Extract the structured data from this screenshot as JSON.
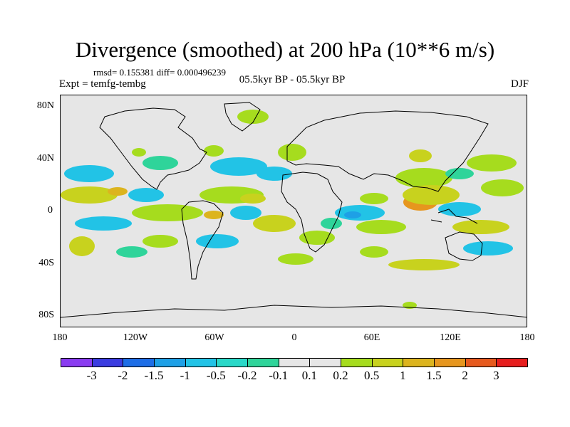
{
  "title": "Divergence (smoothed) at 200 hPa (10**6 m/s)",
  "stats": "rmsd= 0.155381 diff= 0.000496239",
  "experiment": "Expt = temfg-tembg",
  "comparison": "05.5kyr BP - 05.5kyr BP",
  "season": "DJF",
  "y_ticks": [
    "80N",
    "40N",
    "0",
    "40S",
    "80S"
  ],
  "x_ticks": [
    "180",
    "120W",
    "60W",
    "0",
    "60E",
    "120E",
    "180"
  ],
  "legend": {
    "labels": [
      "-3",
      "-2",
      "-1.5",
      "-1",
      "-0.5",
      "-0.2",
      "-0.1",
      "0.1",
      "0.2",
      "0.5",
      "1",
      "1.5",
      "2",
      "3"
    ],
    "colors": [
      "#8a3cf0",
      "#3b3ce0",
      "#1e6ee6",
      "#1ea0e6",
      "#22c3e6",
      "#29d8c8",
      "#2fd49a",
      "#e6e6e6",
      "#a6dc1e",
      "#c8d21e",
      "#dcb41e",
      "#e6961e",
      "#e65a1e",
      "#e61e1e"
    ]
  },
  "colors": {
    "green": "#a6dc1e",
    "yellow": "#c8d21e",
    "gold": "#dcb41e",
    "orange": "#e6961e",
    "cyan": "#22c3e6",
    "teal": "#2fd49a",
    "blue": "#1ea0e6",
    "land_line": "#000000"
  }
}
